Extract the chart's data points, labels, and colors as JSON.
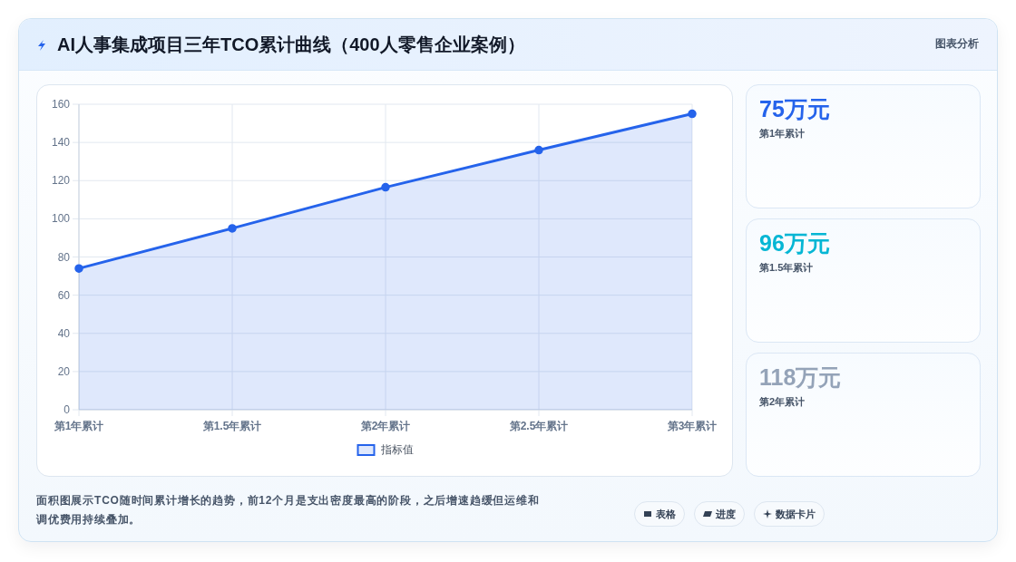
{
  "chart_data": [
    {
      "type": "area",
      "title": "AI人事集成项目三年TCO累计曲线（400人零售企业案例）",
      "categories": [
        "第1年累计",
        "第1.5年累计",
        "第2年累计",
        "第2.5年累计",
        "第3年累计"
      ],
      "series": [
        {
          "name": "指标值",
          "color": "#2563eb",
          "values": [
            74,
            95,
            116.5,
            136,
            155
          ]
        }
      ],
      "ylim": [
        0,
        160
      ],
      "yticks": [
        0,
        20,
        40,
        60,
        80,
        100,
        120,
        140,
        160
      ],
      "grid": true,
      "legend": "bottom",
      "marker": "circle",
      "line_style": "solid",
      "annotations": [
        "图表分析",
        "面积图展示TCO随时间累计增长的趋势，前12个月是支出密度最高的阶段，之后增速趋缓但运维和调优费用持续叠加。",
        "表格",
        "进度",
        "数据卡片"
      ]
    },
    {
      "type": "other",
      "annotations": [
        "75万元",
        "第1年累计",
        "96万元",
        "第1.5年累计",
        "118万元",
        "第2年累计"
      ]
    }
  ]
}
